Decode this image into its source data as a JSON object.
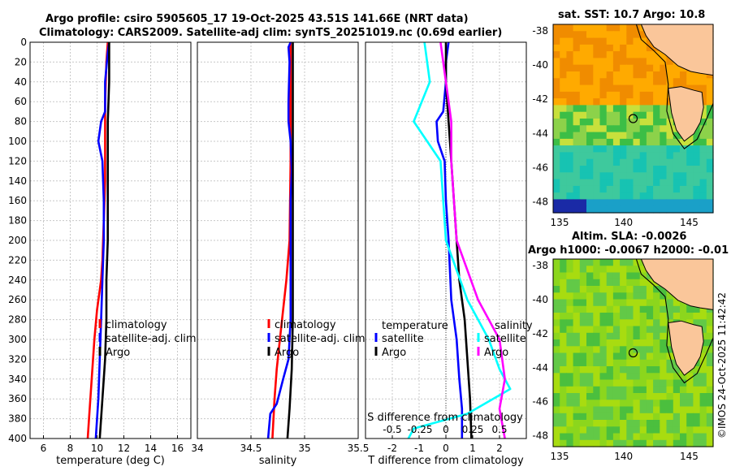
{
  "header": {
    "line1": "Argo profile: csiro 5905605_17 19-Oct-2025 43.51S 141.66E (NRT data)",
    "line2": "Climatology: CARS2009. Satellite-adj clim: synTS_20251019.nc (0.69d earlier)"
  },
  "colors": {
    "clim": "#ff0000",
    "sat": "#0000ff",
    "argo": "#000000",
    "sat_s": "#00ffff",
    "argo_s": "#ff00ff"
  },
  "chart_data": [
    {
      "type": "line",
      "xlabel": "temperature (deg C)",
      "ylabel": "",
      "xlim": [
        5,
        17
      ],
      "ylim": [
        0,
        400
      ],
      "xticks": [
        6,
        8,
        10,
        12,
        14,
        16
      ],
      "yticks": [
        0,
        20,
        40,
        60,
        80,
        100,
        120,
        140,
        160,
        180,
        200,
        220,
        240,
        260,
        280,
        300,
        320,
        340,
        360,
        380,
        400
      ],
      "legend": [
        "climatology",
        "satellite-adj. clim",
        "Argo"
      ],
      "series": [
        {
          "name": "climatology",
          "color": "#ff0000",
          "points": [
            [
              10.8,
              0
            ],
            [
              10.7,
              20
            ],
            [
              10.6,
              60
            ],
            [
              10.6,
              100
            ],
            [
              10.6,
              140
            ],
            [
              10.5,
              180
            ],
            [
              10.4,
              220
            ],
            [
              10.3,
              240
            ],
            [
              10.0,
              270
            ],
            [
              9.8,
              300
            ],
            [
              9.6,
              340
            ],
            [
              9.4,
              380
            ],
            [
              9.3,
              400
            ]
          ]
        },
        {
          "name": "satellite-adj. clim",
          "color": "#0000ff",
          "points": [
            [
              10.9,
              0
            ],
            [
              10.8,
              10
            ],
            [
              10.6,
              40
            ],
            [
              10.6,
              60
            ],
            [
              10.6,
              70
            ],
            [
              10.3,
              80
            ],
            [
              10.1,
              100
            ],
            [
              10.4,
              120
            ],
            [
              10.5,
              160
            ],
            [
              10.5,
              200
            ],
            [
              10.4,
              240
            ],
            [
              10.3,
              280
            ],
            [
              10.2,
              320
            ],
            [
              10.1,
              360
            ],
            [
              9.9,
              400
            ]
          ]
        },
        {
          "name": "Argo",
          "color": "#000000",
          "points": [
            [
              10.9,
              0
            ],
            [
              10.9,
              40
            ],
            [
              10.8,
              80
            ],
            [
              10.8,
              120
            ],
            [
              10.8,
              160
            ],
            [
              10.8,
              200
            ],
            [
              10.7,
              240
            ],
            [
              10.7,
              280
            ],
            [
              10.6,
              320
            ],
            [
              10.4,
              360
            ],
            [
              10.2,
              400
            ]
          ]
        }
      ]
    },
    {
      "type": "line",
      "xlabel": "salinity",
      "xlim": [
        34,
        35.5
      ],
      "ylim": [
        0,
        400
      ],
      "xticks": [
        34,
        34.5,
        35,
        35.5
      ],
      "legend": [
        "climatology",
        "satellite-adj. clim",
        "Argo"
      ],
      "series": [
        {
          "name": "climatology",
          "color": "#ff0000",
          "points": [
            [
              34.87,
              0
            ],
            [
              34.87,
              40
            ],
            [
              34.87,
              120
            ],
            [
              34.86,
              200
            ],
            [
              34.83,
              240
            ],
            [
              34.8,
              270
            ],
            [
              34.77,
              300
            ],
            [
              34.74,
              330
            ],
            [
              34.72,
              360
            ],
            [
              34.7,
              400
            ]
          ]
        },
        {
          "name": "satellite-adj. clim",
          "color": "#0000ff",
          "points": [
            [
              34.87,
              0
            ],
            [
              34.85,
              5
            ],
            [
              34.86,
              20
            ],
            [
              34.85,
              60
            ],
            [
              34.85,
              80
            ],
            [
              34.87,
              100
            ],
            [
              34.88,
              130
            ],
            [
              34.87,
              160
            ],
            [
              34.87,
              200
            ],
            [
              34.87,
              240
            ],
            [
              34.87,
              280
            ],
            [
              34.86,
              300
            ],
            [
              34.85,
              320
            ],
            [
              34.8,
              340
            ],
            [
              34.74,
              365
            ],
            [
              34.68,
              375
            ],
            [
              34.66,
              400
            ]
          ]
        },
        {
          "name": "Argo",
          "color": "#000000",
          "points": [
            [
              34.89,
              0
            ],
            [
              34.89,
              40
            ],
            [
              34.89,
              80
            ],
            [
              34.89,
              120
            ],
            [
              34.89,
              200
            ],
            [
              34.89,
              280
            ],
            [
              34.88,
              330
            ],
            [
              34.86,
              370
            ],
            [
              34.84,
              400
            ]
          ]
        }
      ]
    },
    {
      "type": "line",
      "xlabel": "T difference from climatology",
      "top_xlabel": "S difference from climatology",
      "xlim": [
        -3,
        3
      ],
      "ylim": [
        0,
        400
      ],
      "xticks": [
        -2,
        -1,
        0,
        1,
        2
      ],
      "top_ticks_label": [
        "-0.5",
        "-0.25",
        "0",
        "0.25",
        "0.5"
      ],
      "legend_groups": [
        {
          "title": "temperature",
          "entries": [
            "satellite",
            "Argo"
          ]
        },
        {
          "title": "salinity",
          "entries": [
            "satellite",
            "Argo"
          ]
        }
      ],
      "series": [
        {
          "name": "temperature satellite",
          "color": "#0000ff",
          "points": [
            [
              0.1,
              0
            ],
            [
              0.0,
              20
            ],
            [
              0.0,
              40
            ],
            [
              -0.1,
              70
            ],
            [
              -0.35,
              80
            ],
            [
              -0.3,
              100
            ],
            [
              -0.05,
              120
            ],
            [
              0.0,
              160
            ],
            [
              0.1,
              200
            ],
            [
              0.2,
              260
            ],
            [
              0.4,
              300
            ],
            [
              0.5,
              340
            ],
            [
              0.6,
              370
            ],
            [
              0.6,
              400
            ]
          ]
        },
        {
          "name": "temperature Argo",
          "color": "#000000",
          "points": [
            [
              0.0,
              0
            ],
            [
              0.0,
              40
            ],
            [
              0.1,
              80
            ],
            [
              0.2,
              120
            ],
            [
              0.3,
              160
            ],
            [
              0.4,
              200
            ],
            [
              0.5,
              240
            ],
            [
              0.7,
              280
            ],
            [
              0.8,
              320
            ],
            [
              0.9,
              360
            ],
            [
              0.95,
              400
            ]
          ]
        },
        {
          "name": "salinity satellite",
          "color": "#00ffff",
          "points": [
            [
              -0.2,
              0
            ],
            [
              -0.15,
              40
            ],
            [
              -0.3,
              80
            ],
            [
              -0.05,
              120
            ],
            [
              0.0,
              200
            ],
            [
              0.2,
              260
            ],
            [
              0.4,
              300
            ],
            [
              0.5,
              330
            ],
            [
              0.6,
              350
            ],
            [
              0.2,
              375
            ],
            [
              -0.3,
              390
            ],
            [
              -0.35,
              400
            ]
          ]
        },
        {
          "name": "salinity Argo",
          "color": "#ff00ff",
          "points": [
            [
              -0.05,
              0
            ],
            [
              0.0,
              40
            ],
            [
              0.05,
              80
            ],
            [
              0.05,
              120
            ],
            [
              0.1,
              200
            ],
            [
              0.3,
              260
            ],
            [
              0.5,
              300
            ],
            [
              0.55,
              340
            ],
            [
              0.5,
              370
            ],
            [
              0.55,
              400
            ]
          ]
        }
      ]
    }
  ],
  "map_sst": {
    "title": "sat. SST: 10.7 Argo: 10.8",
    "xticks": [
      "135",
      "140",
      "145"
    ],
    "yticks": [
      "-38",
      "-40",
      "-42",
      "-44",
      "-46",
      "-48"
    ]
  },
  "map_sla": {
    "title1": "Altim. SLA: -0.0026",
    "title2": "Argo h1000: -0.0067 h2000: -0.01",
    "xticks": [
      "135",
      "140",
      "145"
    ],
    "yticks": [
      "-38",
      "-40",
      "-42",
      "-44",
      "-46",
      "-48"
    ]
  },
  "credit": "©IMOS 24-Oct-2025 11:42:42"
}
